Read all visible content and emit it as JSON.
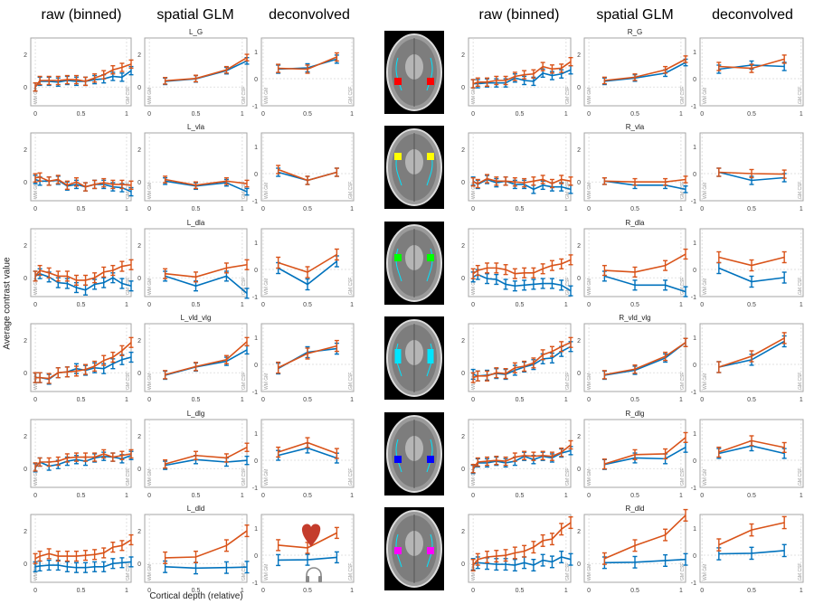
{
  "figure": {
    "column_titles": [
      "raw (binned)",
      "spatial GLM",
      "deconvolved",
      "raw (binned)",
      "spatial GLM",
      "deconvolved"
    ],
    "ylabel": "Average contrast value",
    "xlabel": "Cortical depth (relative)",
    "boundary_labels": {
      "inner": "WM GM",
      "outer": "GM CSF"
    },
    "colors": {
      "series_a": "#0072BD",
      "series_b": "#D95319",
      "grid": "#d9d9d9",
      "axis": "#8c8c8c"
    },
    "icons": {
      "heart": "heart-icon",
      "headphones": "headphones-icon"
    },
    "roi_colors": [
      "#ff0000",
      "#ffff00",
      "#00ff00",
      "#00e5ff",
      "#0000ff",
      "#ff00ff"
    ]
  },
  "chart_data": {
    "type": "line",
    "title": "",
    "xlabel": "Cortical depth (relative)",
    "ylabel": "Average contrast value",
    "legend": "none",
    "grid": true,
    "series_names": [
      "blue",
      "orange"
    ],
    "panel_types": {
      "raw": {
        "xlim": [
          -0.05,
          1.05
        ],
        "ylim": [
          -1.15,
          3
        ],
        "xticks": [
          "0",
          "0.5",
          "1"
        ],
        "yticks": [
          "0",
          "2"
        ],
        "x": [
          0,
          0.05,
          0.15,
          0.25,
          0.35,
          0.45,
          0.55,
          0.65,
          0.75,
          0.85,
          0.95,
          1.05
        ]
      },
      "glm": {
        "xlim": [
          -0.05,
          1.05
        ],
        "ylim": [
          -1.15,
          3
        ],
        "xticks": [
          "0",
          "0.5",
          "1"
        ],
        "yticks": [
          "0",
          "2"
        ],
        "x": [
          0.17,
          0.5,
          0.83,
          1.05
        ]
      },
      "deconv": {
        "xlim": [
          -0.02,
          1.02
        ],
        "ylim": [
          -1,
          1.5
        ],
        "xticks": [
          "0",
          "0.5",
          "1"
        ],
        "yticks": [
          "-1",
          "0",
          "1"
        ],
        "x": [
          0.17,
          0.5,
          0.83
        ]
      }
    },
    "rois": [
      {
        "name": "L_G",
        "side": "left",
        "raw": {
          "blue": [
            0.0,
            0.35,
            0.35,
            0.3,
            0.4,
            0.35,
            0.35,
            0.45,
            0.5,
            0.65,
            0.6,
            1.0
          ],
          "orange": [
            0.0,
            0.4,
            0.4,
            0.4,
            0.45,
            0.45,
            0.35,
            0.55,
            0.75,
            1.05,
            1.2,
            1.4
          ],
          "err": 0.25
        },
        "glm": {
          "blue": [
            0.35,
            0.5,
            1.0,
            1.6
          ],
          "orange": [
            0.38,
            0.52,
            1.05,
            1.8
          ],
          "err": 0.2
        },
        "deconv": {
          "blue": [
            0.35,
            0.4,
            0.72
          ],
          "orange": [
            0.38,
            0.35,
            0.8
          ],
          "err": 0.15
        }
      },
      {
        "name": "R_G",
        "side": "right",
        "raw": {
          "blue": [
            0.2,
            0.2,
            0.25,
            0.25,
            0.25,
            0.55,
            0.4,
            0.35,
            0.85,
            0.7,
            0.8,
            1.05
          ],
          "orange": [
            0.2,
            0.3,
            0.3,
            0.4,
            0.4,
            0.65,
            0.75,
            0.8,
            1.25,
            1.1,
            1.15,
            1.55
          ],
          "err": 0.25
        },
        "glm": {
          "blue": [
            0.35,
            0.55,
            0.85,
            1.5
          ],
          "orange": [
            0.4,
            0.6,
            1.05,
            1.7
          ],
          "err": 0.2
        },
        "deconv": {
          "blue": [
            0.35,
            0.5,
            0.45
          ],
          "orange": [
            0.45,
            0.38,
            0.72
          ],
          "err": 0.15
        }
      },
      {
        "name": "L_vla",
        "side": "left",
        "raw": {
          "blue": [
            0.15,
            0.05,
            0.05,
            0.1,
            -0.25,
            -0.15,
            -0.3,
            -0.15,
            -0.15,
            -0.3,
            -0.35,
            -0.6
          ],
          "orange": [
            0.25,
            0.3,
            0.05,
            0.15,
            -0.2,
            0.0,
            -0.3,
            -0.15,
            -0.05,
            -0.15,
            -0.15,
            -0.2
          ],
          "err": 0.25
        },
        "glm": {
          "blue": [
            0.05,
            -0.25,
            -0.05,
            -0.6
          ],
          "orange": [
            0.15,
            -0.2,
            0.05,
            -0.1
          ],
          "err": 0.2
        },
        "deconv": {
          "blue": [
            0.05,
            -0.25,
            0.05
          ],
          "orange": [
            0.15,
            -0.25,
            0.05
          ],
          "err": 0.15
        }
      },
      {
        "name": "R_vla",
        "side": "right",
        "raw": {
          "blue": [
            0.05,
            -0.15,
            0.15,
            -0.05,
            0.05,
            -0.15,
            -0.15,
            -0.45,
            -0.2,
            -0.3,
            -0.3,
            -0.45
          ],
          "orange": [
            0.0,
            -0.1,
            0.2,
            0.05,
            0.05,
            0.0,
            -0.05,
            0.05,
            0.15,
            -0.1,
            0.15,
            0.05
          ],
          "err": 0.25
        },
        "glm": {
          "blue": [
            0.05,
            -0.2,
            -0.2,
            -0.45
          ],
          "orange": [
            0.05,
            0.0,
            0.0,
            0.15
          ],
          "err": 0.2
        },
        "deconv": {
          "blue": [
            0.05,
            -0.25,
            -0.15
          ],
          "orange": [
            0.05,
            0.0,
            -0.02
          ],
          "err": 0.15
        }
      },
      {
        "name": "L_dla",
        "side": "left",
        "raw": {
          "blue": [
            0.1,
            0.25,
            0.05,
            -0.3,
            -0.35,
            -0.6,
            -0.75,
            -0.4,
            -0.3,
            0.0,
            -0.35,
            -0.5
          ],
          "orange": [
            0.1,
            0.45,
            0.3,
            0.1,
            0.1,
            -0.15,
            -0.15,
            0.0,
            0.35,
            0.45,
            0.7,
            0.8
          ],
          "err": 0.3
        },
        "glm": {
          "blue": [
            0.1,
            -0.5,
            0.1,
            -0.95
          ],
          "orange": [
            0.25,
            0.05,
            0.6,
            0.8
          ],
          "err": 0.3
        },
        "deconv": {
          "blue": [
            0.05,
            -0.55,
            0.3
          ],
          "orange": [
            0.25,
            -0.1,
            0.55
          ],
          "err": 0.2
        }
      },
      {
        "name": "R_dla",
        "side": "right",
        "raw": {
          "blue": [
            0.05,
            0.2,
            -0.05,
            -0.1,
            -0.4,
            -0.5,
            -0.45,
            -0.4,
            -0.35,
            -0.35,
            -0.45,
            -0.8
          ],
          "orange": [
            0.25,
            0.45,
            0.6,
            0.6,
            0.5,
            0.25,
            0.3,
            0.3,
            0.55,
            0.75,
            0.85,
            1.1
          ],
          "err": 0.3
        },
        "glm": {
          "blue": [
            0.1,
            -0.45,
            -0.45,
            -0.85
          ],
          "orange": [
            0.45,
            0.35,
            0.75,
            1.45
          ],
          "err": 0.3
        },
        "deconv": {
          "blue": [
            0.05,
            -0.45,
            -0.3
          ],
          "orange": [
            0.45,
            0.15,
            0.45
          ],
          "err": 0.2
        }
      },
      {
        "name": "L_vld_vlg",
        "side": "left",
        "raw": {
          "blue": [
            -0.3,
            -0.3,
            -0.4,
            0.0,
            0.05,
            0.25,
            0.15,
            0.3,
            0.25,
            0.55,
            0.8,
            0.95
          ],
          "orange": [
            -0.3,
            -0.3,
            -0.35,
            0.0,
            0.05,
            0.1,
            0.2,
            0.4,
            0.75,
            0.95,
            1.35,
            1.85
          ],
          "err": 0.3
        },
        "glm": {
          "blue": [
            -0.15,
            0.35,
            0.7,
            1.4
          ],
          "orange": [
            -0.12,
            0.38,
            0.8,
            1.9
          ],
          "err": 0.25
        },
        "deconv": {
          "blue": [
            -0.15,
            0.45,
            0.58
          ],
          "orange": [
            -0.12,
            0.4,
            0.68
          ],
          "err": 0.2
        }
      },
      {
        "name": "R_vld_vlg",
        "side": "right",
        "raw": {
          "blue": [
            -0.1,
            -0.2,
            -0.15,
            -0.05,
            -0.1,
            0.15,
            0.35,
            0.5,
            0.85,
            0.9,
            1.3,
            1.6
          ],
          "orange": [
            -0.3,
            -0.2,
            -0.2,
            0.0,
            -0.05,
            0.3,
            0.4,
            0.6,
            1.1,
            1.3,
            1.6,
            1.85
          ],
          "err": 0.3
        },
        "glm": {
          "blue": [
            -0.15,
            0.15,
            0.9,
            1.85
          ],
          "orange": [
            -0.12,
            0.22,
            1.0,
            1.85
          ],
          "err": 0.25
        },
        "deconv": {
          "blue": [
            -0.1,
            0.17,
            0.85
          ],
          "orange": [
            -0.1,
            0.3,
            0.97
          ],
          "err": 0.2
        }
      },
      {
        "name": "L_dlg",
        "side": "left",
        "raw": {
          "blue": [
            0.05,
            0.4,
            0.15,
            0.25,
            0.45,
            0.55,
            0.45,
            0.65,
            0.75,
            0.7,
            0.6,
            0.8
          ],
          "orange": [
            0.1,
            0.4,
            0.4,
            0.45,
            0.65,
            0.7,
            0.7,
            0.7,
            0.9,
            0.7,
            0.8,
            0.9
          ],
          "err": 0.25
        },
        "glm": {
          "blue": [
            0.2,
            0.55,
            0.4,
            0.5
          ],
          "orange": [
            0.28,
            0.8,
            0.65,
            1.3
          ],
          "err": 0.25
        },
        "deconv": {
          "blue": [
            0.18,
            0.45,
            0.08
          ],
          "orange": [
            0.3,
            0.65,
            0.25
          ],
          "err": 0.18
        }
      },
      {
        "name": "R_dlg",
        "side": "right",
        "raw": {
          "blue": [
            -0.05,
            0.35,
            0.35,
            0.45,
            0.35,
            0.45,
            0.75,
            0.55,
            0.75,
            0.65,
            0.95,
            1.1
          ],
          "orange": [
            0.0,
            0.4,
            0.45,
            0.5,
            0.45,
            0.7,
            0.8,
            0.75,
            0.8,
            0.75,
            1.0,
            1.45
          ],
          "err": 0.25
        },
        "glm": {
          "blue": [
            0.25,
            0.65,
            0.6,
            1.3
          ],
          "orange": [
            0.28,
            0.85,
            0.9,
            1.9
          ],
          "err": 0.3
        },
        "deconv": {
          "blue": [
            0.25,
            0.53,
            0.25
          ],
          "orange": [
            0.3,
            0.72,
            0.47
          ],
          "err": 0.18
        }
      },
      {
        "name": "L_dld",
        "side": "left",
        "raw": {
          "blue": [
            -0.2,
            -0.15,
            -0.1,
            -0.1,
            -0.2,
            -0.25,
            -0.25,
            -0.2,
            -0.2,
            0.0,
            0.05,
            0.1
          ],
          "orange": [
            0.3,
            0.45,
            0.6,
            0.45,
            0.45,
            0.45,
            0.5,
            0.55,
            0.65,
            1.0,
            1.1,
            1.45
          ],
          "err": 0.3
        },
        "glm": {
          "blue": [
            -0.2,
            -0.28,
            -0.25,
            -0.22
          ],
          "orange": [
            0.35,
            0.4,
            1.1,
            2.0
          ],
          "err": 0.35
        },
        "deconv": {
          "blue": [
            -0.18,
            -0.17,
            -0.08
          ],
          "orange": [
            0.37,
            0.27,
            0.82
          ],
          "err": 0.2
        }
      },
      {
        "name": "R_dld",
        "side": "right",
        "raw": {
          "blue": [
            -0.05,
            0.05,
            0.0,
            -0.05,
            -0.05,
            -0.1,
            0.05,
            -0.1,
            0.2,
            0.1,
            0.4,
            0.25
          ],
          "orange": [
            -0.1,
            0.25,
            0.4,
            0.45,
            0.5,
            0.65,
            0.75,
            1.0,
            1.4,
            1.5,
            2.1,
            2.5
          ],
          "err": 0.35
        },
        "glm": {
          "blue": [
            0.05,
            0.08,
            0.18,
            0.25
          ],
          "orange": [
            0.3,
            1.1,
            1.75,
            2.95
          ],
          "err": 0.35
        },
        "deconv": {
          "blue": [
            0.05,
            0.07,
            0.17
          ],
          "orange": [
            0.38,
            0.93,
            1.2
          ],
          "err": 0.22
        }
      }
    ]
  }
}
